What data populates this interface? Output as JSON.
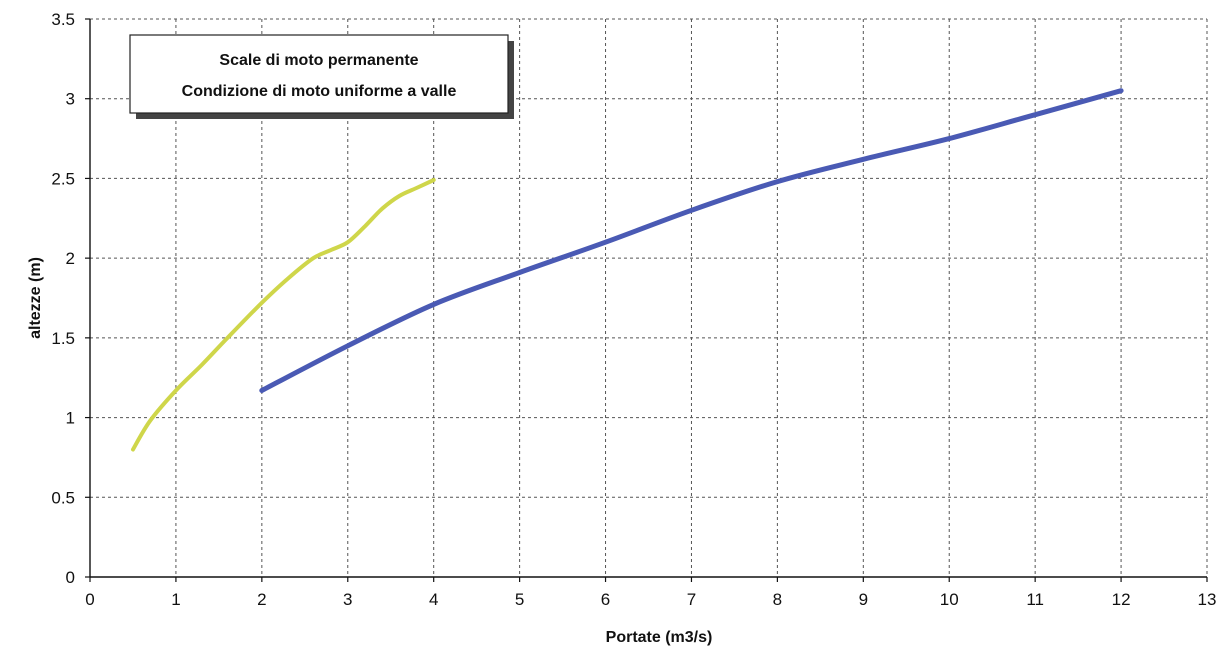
{
  "chart_data": {
    "type": "line",
    "title_lines": [
      "Scale di moto permanente",
      "Condizione di moto uniforme a valle"
    ],
    "xlabel": "Portate (m3/s)",
    "ylabel": "altezze (m)",
    "xlim": [
      0,
      13
    ],
    "ylim": [
      0,
      3.5
    ],
    "xticks": [
      0,
      1,
      2,
      3,
      4,
      5,
      6,
      7,
      8,
      9,
      10,
      11,
      12,
      13
    ],
    "yticks": [
      0,
      0.5,
      1,
      1.5,
      2,
      2.5,
      3,
      3.5
    ],
    "ytick_labels": [
      "0",
      "0.5",
      "1",
      "1.5",
      "2",
      "2.5",
      "3",
      "3.5"
    ],
    "grid": true,
    "series": [
      {
        "color": "#cfd64a",
        "x": [
          0.5,
          0.7,
          1.0,
          1.3,
          1.6,
          2.0,
          2.3,
          2.6,
          2.8,
          3.0,
          3.2,
          3.4,
          3.6,
          3.8,
          4.0
        ],
        "y": [
          0.8,
          0.98,
          1.17,
          1.33,
          1.5,
          1.72,
          1.87,
          2.0,
          2.05,
          2.1,
          2.2,
          2.31,
          2.39,
          2.44,
          2.49
        ]
      },
      {
        "color": "#4a5ab4",
        "x": [
          2,
          3,
          4,
          5,
          6,
          7,
          8,
          9,
          10,
          11,
          12
        ],
        "y": [
          1.17,
          1.45,
          1.71,
          1.91,
          2.1,
          2.3,
          2.48,
          2.62,
          2.75,
          2.9,
          3.05
        ]
      }
    ]
  }
}
